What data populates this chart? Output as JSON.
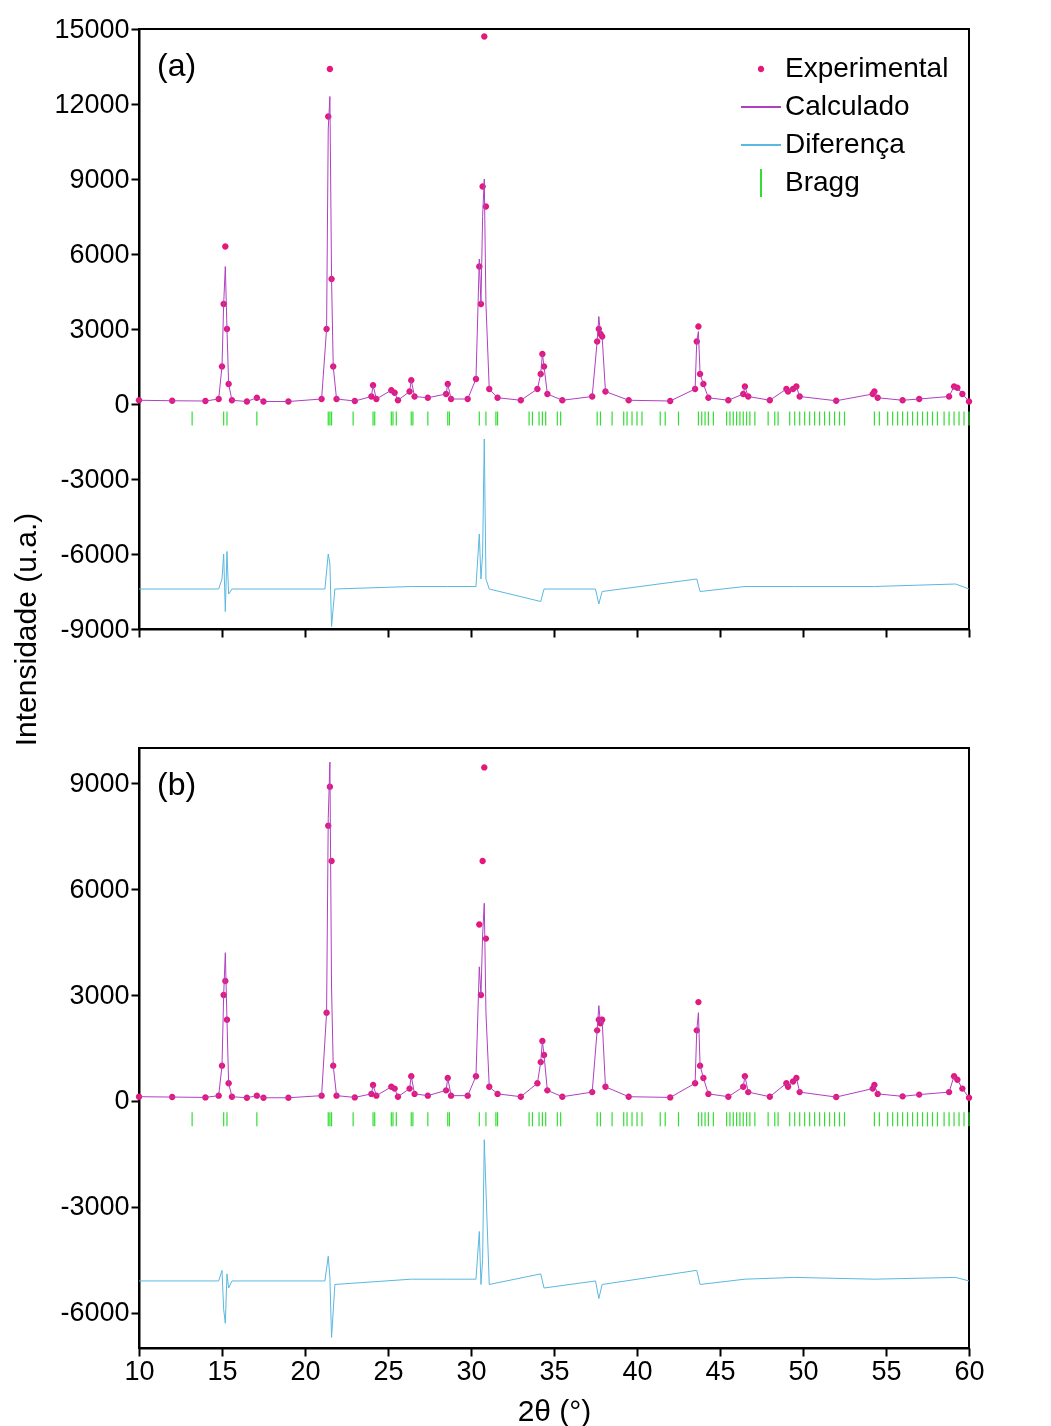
{
  "chart_data": [
    {
      "type": "line",
      "title": "(a)",
      "ylabel": "Intensidade (u.a.)",
      "xlim": [
        10,
        60
      ],
      "xticks": [
        10,
        15,
        20,
        25,
        30,
        35,
        40,
        45,
        50,
        55,
        60
      ],
      "ylim": [
        -9000,
        15000
      ],
      "yticks": [
        -9000,
        -6000,
        -3000,
        0,
        3000,
        6000,
        9000,
        12000,
        15000
      ],
      "tick_labels": "y",
      "grid": false,
      "legend": "top right",
      "series": [
        {
          "name": "Experimental",
          "type": "scatter",
          "marker": "circle",
          "color": "#e6177a",
          "x": [
            10,
            12,
            14,
            14.8,
            15.0,
            15.1,
            15.2,
            15.3,
            15.4,
            15.6,
            16.5,
            17.1,
            17.5,
            19,
            21.0,
            21.3,
            21.4,
            21.5,
            21.6,
            21.7,
            21.9,
            23,
            24.0,
            24.1,
            24.3,
            25.2,
            25.4,
            25.6,
            26.3,
            26.4,
            26.6,
            27.4,
            28.5,
            28.6,
            28.8,
            29.8,
            30.3,
            30.5,
            30.6,
            30.7,
            30.8,
            30.9,
            31.1,
            31.6,
            33,
            34.0,
            34.2,
            34.3,
            34.4,
            34.6,
            35.5,
            37.3,
            37.6,
            37.7,
            37.8,
            37.9,
            38.1,
            39.5,
            42,
            43.5,
            43.6,
            43.7,
            43.8,
            44.0,
            44.3,
            45.5,
            46.4,
            46.5,
            46.7,
            48,
            49.0,
            49.1,
            49.4,
            49.6,
            49.8,
            52,
            54.2,
            54.3,
            54.5,
            56,
            57,
            58.8,
            59.1,
            59.3,
            59.6,
            60
          ],
          "values": [
            150,
            130,
            120,
            200,
            1500,
            4000,
            6300,
            3000,
            800,
            150,
            100,
            250,
            100,
            100,
            200,
            3000,
            11500,
            13400,
            5000,
            1500,
            200,
            120,
            300,
            750,
            200,
            550,
            450,
            150,
            500,
            950,
            300,
            250,
            400,
            800,
            200,
            200,
            1000,
            5500,
            4000,
            8700,
            14700,
            7900,
            600,
            250,
            150,
            600,
            1200,
            2000,
            1500,
            400,
            150,
            300,
            2500,
            3000,
            2800,
            2700,
            500,
            150,
            120,
            600,
            2500,
            3100,
            1200,
            800,
            250,
            150,
            400,
            700,
            300,
            150,
            600,
            500,
            600,
            700,
            300,
            130,
            400,
            500,
            250,
            150,
            200,
            300,
            700,
            650,
            400,
            100
          ]
        },
        {
          "name": "Calculado",
          "color": "#b040c0",
          "x": [
            10,
            12,
            14,
            14.8,
            15.0,
            15.1,
            15.2,
            15.3,
            15.4,
            15.6,
            16.5,
            17.1,
            17.5,
            19,
            21.0,
            21.3,
            21.4,
            21.5,
            21.6,
            21.7,
            21.9,
            23,
            24.0,
            24.1,
            24.3,
            25.2,
            25.4,
            25.6,
            26.3,
            26.4,
            26.6,
            27.4,
            28.5,
            28.6,
            28.8,
            29.8,
            30.3,
            30.5,
            30.6,
            30.7,
            30.8,
            30.9,
            31.1,
            31.6,
            33,
            34.0,
            34.2,
            34.3,
            34.4,
            34.6,
            35.5,
            37.3,
            37.6,
            37.7,
            37.8,
            37.9,
            38.1,
            39.5,
            42,
            43.5,
            43.6,
            43.7,
            43.8,
            44.0,
            44.3,
            45.5,
            46.4,
            46.5,
            46.7,
            48,
            49.0,
            49.1,
            49.4,
            49.6,
            49.8,
            52,
            54.2,
            54.3,
            54.5,
            56,
            57,
            58.8,
            59.1,
            59.3,
            59.6,
            60
          ],
          "values": [
            150,
            130,
            120,
            200,
            1500,
            4000,
            5500,
            3000,
            800,
            150,
            100,
            250,
            100,
            100,
            200,
            3000,
            11000,
            12300,
            5000,
            1500,
            200,
            120,
            300,
            750,
            200,
            550,
            450,
            150,
            500,
            950,
            300,
            250,
            400,
            800,
            200,
            200,
            1000,
            5800,
            4000,
            7500,
            9000,
            4000,
            600,
            250,
            150,
            600,
            1200,
            2000,
            1500,
            400,
            150,
            300,
            2500,
            3500,
            2800,
            2700,
            500,
            150,
            120,
            600,
            2500,
            2900,
            1200,
            800,
            250,
            150,
            400,
            700,
            300,
            150,
            600,
            500,
            600,
            700,
            300,
            130,
            400,
            500,
            250,
            150,
            200,
            300,
            700,
            650,
            400,
            100
          ]
        },
        {
          "name": "Diferença",
          "color": "#5bb8e0",
          "x": [
            10,
            14.8,
            15.0,
            15.1,
            15.2,
            15.3,
            15.4,
            15.6,
            21.2,
            21.4,
            21.5,
            21.6,
            21.8,
            26.4,
            28.6,
            30.3,
            30.5,
            30.6,
            30.7,
            30.8,
            30.9,
            31.1,
            34.2,
            34.4,
            37.5,
            37.7,
            37.9,
            43.6,
            43.8,
            46.5,
            49.5,
            54.3,
            59.2,
            60
          ],
          "values": [
            -7400,
            -7400,
            -7000,
            -6000,
            -8300,
            -5900,
            -7600,
            -7400,
            -7400,
            -6000,
            -6400,
            -8900,
            -7400,
            -7300,
            -7300,
            -7300,
            -5200,
            -7000,
            -6000,
            -1400,
            -7000,
            -7400,
            -7900,
            -7400,
            -7400,
            -8000,
            -7500,
            -7000,
            -7500,
            -7300,
            -7300,
            -7300,
            -7200,
            -7400
          ]
        },
        {
          "name": "Bragg",
          "type": "bar",
          "color": "#33dd33",
          "x": [
            13.2,
            15.1,
            15.3,
            17.1,
            21.4,
            21.5,
            21.6,
            22.9,
            24.1,
            24.2,
            25.2,
            25.3,
            25.5,
            26.4,
            26.5,
            27.4,
            28.6,
            28.7,
            30.5,
            30.9,
            31.5,
            31.6,
            33.5,
            33.7,
            34.1,
            34.3,
            34.5,
            35.2,
            35.4,
            37.6,
            37.8,
            38.5,
            39.2,
            39.4,
            39.7,
            40.0,
            40.3,
            41.4,
            41.7,
            42.5,
            43.7,
            43.9,
            44.1,
            44.3,
            44.6,
            45.4,
            45.6,
            45.8,
            46.0,
            46.2,
            46.4,
            46.6,
            46.8,
            47.1,
            47.9,
            48.3,
            48.5,
            49.2,
            49.5,
            49.8,
            50.1,
            50.4,
            50.7,
            51.0,
            51.3,
            51.6,
            51.9,
            52.2,
            52.5,
            54.3,
            54.6,
            55.1,
            55.4,
            55.7,
            56.0,
            56.3,
            56.6,
            56.9,
            57.2,
            57.5,
            57.8,
            58.1,
            58.5,
            58.8,
            59.1,
            59.4,
            59.7,
            60.0
          ],
          "base": [
            -860,
            -860,
            -860,
            -860,
            -860,
            -860,
            -860,
            -860,
            -860,
            -860,
            -860,
            -860,
            -860,
            -860,
            -860,
            -860,
            -860,
            -860,
            -860,
            -860,
            -860,
            -860,
            -860,
            -860,
            -860,
            -860,
            -860,
            -860,
            -860,
            -860,
            -860,
            -860,
            -860,
            -860,
            -860,
            -860,
            -860,
            -860,
            -860,
            -860,
            -860,
            -860,
            -860,
            -860,
            -860,
            -860,
            -860,
            -860,
            -860,
            -860,
            -860,
            -860,
            -860,
            -860,
            -860,
            -860,
            -860,
            -860,
            -860,
            -860,
            -860,
            -860,
            -860,
            -860,
            -860,
            -860,
            -860,
            -860,
            -860,
            -860,
            -860,
            -860,
            -860,
            -860,
            -860,
            -860,
            -860,
            -860,
            -860,
            -860,
            -860,
            -860,
            -860,
            -860,
            -860,
            -860,
            -860,
            -860
          ],
          "values": [
            560,
            560,
            560,
            560,
            560,
            560,
            560,
            560,
            560,
            560,
            560,
            560,
            560,
            560,
            560,
            560,
            560,
            560,
            560,
            560,
            560,
            560,
            560,
            560,
            560,
            560,
            560,
            560,
            560,
            560,
            560,
            560,
            560,
            560,
            560,
            560,
            560,
            560,
            560,
            560,
            560,
            560,
            560,
            560,
            560,
            560,
            560,
            560,
            560,
            560,
            560,
            560,
            560,
            560,
            560,
            560,
            560,
            560,
            560,
            560,
            560,
            560,
            560,
            560,
            560,
            560,
            560,
            560,
            560,
            560,
            560,
            560,
            560,
            560,
            560,
            560,
            560,
            560,
            560,
            560,
            560,
            560,
            560,
            560,
            560,
            560,
            560,
            560
          ]
        }
      ]
    },
    {
      "type": "line",
      "title": "(b)",
      "xlabel": "2θ (°)",
      "xlim": [
        10,
        60
      ],
      "xticks": [
        10,
        15,
        20,
        25,
        30,
        35,
        40,
        45,
        50,
        55,
        60
      ],
      "ylim": [
        -7000,
        10000
      ],
      "yticks": [
        -6000,
        -3000,
        0,
        3000,
        6000,
        9000
      ],
      "grid": false,
      "legend": "top right",
      "series": [
        {
          "name": "Experimental",
          "type": "scatter",
          "marker": "circle",
          "color": "#e6177a",
          "x": [
            10,
            12,
            14,
            14.8,
            15.0,
            15.1,
            15.2,
            15.3,
            15.4,
            15.6,
            16.5,
            17.1,
            17.5,
            19,
            21.0,
            21.3,
            21.4,
            21.5,
            21.6,
            21.7,
            21.9,
            23,
            24.0,
            24.1,
            24.3,
            25.2,
            25.4,
            25.6,
            26.3,
            26.4,
            26.6,
            27.4,
            28.5,
            28.6,
            28.8,
            29.8,
            30.3,
            30.5,
            30.6,
            30.7,
            30.8,
            30.9,
            31.1,
            31.6,
            33,
            34.0,
            34.2,
            34.3,
            34.4,
            34.6,
            35.5,
            37.3,
            37.6,
            37.7,
            37.8,
            37.9,
            38.1,
            39.5,
            42,
            43.5,
            43.6,
            43.7,
            43.8,
            44.0,
            44.3,
            45.5,
            46.4,
            46.5,
            46.7,
            48,
            49.0,
            49.1,
            49.4,
            49.6,
            49.8,
            52,
            54.2,
            54.3,
            54.5,
            56,
            57,
            58.8,
            59.1,
            59.3,
            59.6,
            60
          ],
          "values": [
            120,
            110,
            100,
            150,
            1000,
            3000,
            3400,
            2300,
            500,
            120,
            90,
            150,
            90,
            90,
            150,
            2500,
            7800,
            8900,
            6800,
            1000,
            150,
            100,
            200,
            450,
            150,
            400,
            350,
            120,
            350,
            700,
            200,
            150,
            300,
            650,
            150,
            150,
            700,
            5000,
            3000,
            6800,
            9450,
            4600,
            400,
            200,
            120,
            500,
            1100,
            1700,
            1300,
            300,
            120,
            250,
            2000,
            2300,
            2200,
            2300,
            400,
            120,
            100,
            500,
            2000,
            2800,
            1000,
            650,
            200,
            120,
            400,
            700,
            250,
            120,
            500,
            400,
            550,
            650,
            250,
            110,
            350,
            450,
            200,
            130,
            180,
            250,
            700,
            600,
            350,
            90
          ]
        },
        {
          "name": "Calculado",
          "color": "#b040c0",
          "x": [
            10,
            12,
            14,
            14.8,
            15.0,
            15.1,
            15.2,
            15.3,
            15.4,
            15.6,
            16.5,
            17.1,
            17.5,
            19,
            21.0,
            21.3,
            21.4,
            21.5,
            21.6,
            21.7,
            21.9,
            23,
            24.0,
            24.1,
            24.3,
            25.2,
            25.4,
            25.6,
            26.3,
            26.4,
            26.6,
            27.4,
            28.5,
            28.6,
            28.8,
            29.8,
            30.3,
            30.5,
            30.6,
            30.7,
            30.8,
            30.9,
            31.1,
            31.6,
            33,
            34.0,
            34.2,
            34.3,
            34.4,
            34.6,
            35.5,
            37.3,
            37.6,
            37.7,
            37.8,
            37.9,
            38.1,
            39.5,
            42,
            43.5,
            43.6,
            43.7,
            43.8,
            44.0,
            44.3,
            45.5,
            46.4,
            46.5,
            46.7,
            48,
            49.0,
            49.1,
            49.4,
            49.6,
            49.8,
            52,
            54.2,
            54.3,
            54.5,
            56,
            57,
            58.8,
            59.1,
            59.3,
            59.6,
            60
          ],
          "values": [
            120,
            110,
            100,
            150,
            1000,
            3000,
            4200,
            2300,
            500,
            120,
            90,
            150,
            90,
            90,
            150,
            2500,
            8000,
            9600,
            3200,
            1000,
            150,
            100,
            200,
            450,
            150,
            400,
            350,
            120,
            350,
            700,
            200,
            150,
            300,
            650,
            150,
            150,
            700,
            3800,
            3000,
            4700,
            5600,
            2500,
            400,
            200,
            120,
            500,
            1100,
            1700,
            1300,
            300,
            120,
            250,
            2000,
            2700,
            2200,
            2300,
            400,
            120,
            100,
            500,
            2000,
            2500,
            1000,
            650,
            200,
            120,
            400,
            700,
            250,
            120,
            500,
            400,
            550,
            650,
            250,
            110,
            350,
            450,
            200,
            130,
            180,
            250,
            700,
            600,
            350,
            90
          ]
        },
        {
          "name": "Diferença",
          "color": "#5bb8e0",
          "x": [
            10,
            14.8,
            15.0,
            15.1,
            15.2,
            15.3,
            15.4,
            15.6,
            21.2,
            21.4,
            21.5,
            21.6,
            21.8,
            26.4,
            28.6,
            30.3,
            30.5,
            30.6,
            30.7,
            30.8,
            30.9,
            31.1,
            34.2,
            34.4,
            37.5,
            37.7,
            37.9,
            43.6,
            43.8,
            46.5,
            49.5,
            54.3,
            59.2,
            60
          ],
          "values": [
            -5100,
            -5100,
            -4800,
            -5900,
            -6300,
            -4900,
            -5300,
            -5100,
            -5100,
            -4400,
            -5000,
            -6700,
            -5200,
            -5050,
            -5050,
            -5050,
            -3700,
            -5200,
            -4500,
            -1100,
            -2500,
            -5200,
            -4900,
            -5300,
            -5100,
            -5600,
            -5200,
            -4800,
            -5200,
            -5050,
            -5000,
            -5050,
            -5000,
            -5100
          ]
        },
        {
          "name": "Bragg",
          "type": "bar",
          "color": "#33dd33",
          "x": [
            13.2,
            15.1,
            15.3,
            17.1,
            21.4,
            21.5,
            21.6,
            22.9,
            24.1,
            24.2,
            25.2,
            25.3,
            25.5,
            26.4,
            26.5,
            27.4,
            28.6,
            28.7,
            30.5,
            30.9,
            31.5,
            31.6,
            33.5,
            33.7,
            34.1,
            34.3,
            34.5,
            35.2,
            35.4,
            37.6,
            37.8,
            38.5,
            39.2,
            39.4,
            39.7,
            40.0,
            40.3,
            41.4,
            41.7,
            42.5,
            43.7,
            43.9,
            44.1,
            44.3,
            44.6,
            45.4,
            45.6,
            45.8,
            46.0,
            46.2,
            46.4,
            46.6,
            46.8,
            47.1,
            47.9,
            48.3,
            48.5,
            49.2,
            49.5,
            49.8,
            50.1,
            50.4,
            50.7,
            51.0,
            51.3,
            51.6,
            51.9,
            52.2,
            52.5,
            54.3,
            54.6,
            55.1,
            55.4,
            55.7,
            56.0,
            56.3,
            56.6,
            56.9,
            57.2,
            57.5,
            57.8,
            58.1,
            58.5,
            58.8,
            59.1,
            59.4,
            59.7,
            60.0
          ],
          "base": [
            -720,
            -720,
            -720,
            -720,
            -720,
            -720,
            -720,
            -720,
            -720,
            -720,
            -720,
            -720,
            -720,
            -720,
            -720,
            -720,
            -720,
            -720,
            -720,
            -720,
            -720,
            -720,
            -720,
            -720,
            -720,
            -720,
            -720,
            -720,
            -720,
            -720,
            -720,
            -720,
            -720,
            -720,
            -720,
            -720,
            -720,
            -720,
            -720,
            -720,
            -720,
            -720,
            -720,
            -720,
            -720,
            -720,
            -720,
            -720,
            -720,
            -720,
            -720,
            -720,
            -720,
            -720,
            -720,
            -720,
            -720,
            -720,
            -720,
            -720,
            -720,
            -720,
            -720,
            -720,
            -720,
            -720,
            -720,
            -720,
            -720,
            -720,
            -720,
            -720,
            -720,
            -720,
            -720,
            -720,
            -720,
            -720,
            -720,
            -720,
            -720,
            -720,
            -720,
            -720,
            -720,
            -720,
            -720,
            -720
          ],
          "values": [
            400,
            400,
            400,
            400,
            400,
            400,
            400,
            400,
            400,
            400,
            400,
            400,
            400,
            400,
            400,
            400,
            400,
            400,
            400,
            400,
            400,
            400,
            400,
            400,
            400,
            400,
            400,
            400,
            400,
            400,
            400,
            400,
            400,
            400,
            400,
            400,
            400,
            400,
            400,
            400,
            400,
            400,
            400,
            400,
            400,
            400,
            400,
            400,
            400,
            400,
            400,
            400,
            400,
            400,
            400,
            400,
            400,
            400,
            400,
            400,
            400,
            400,
            400,
            400,
            400,
            400,
            400,
            400,
            400,
            400,
            400,
            400,
            400,
            400,
            400,
            400,
            400,
            400,
            400,
            400,
            400,
            400,
            400,
            400,
            400,
            400,
            400,
            400
          ]
        }
      ]
    }
  ]
}
